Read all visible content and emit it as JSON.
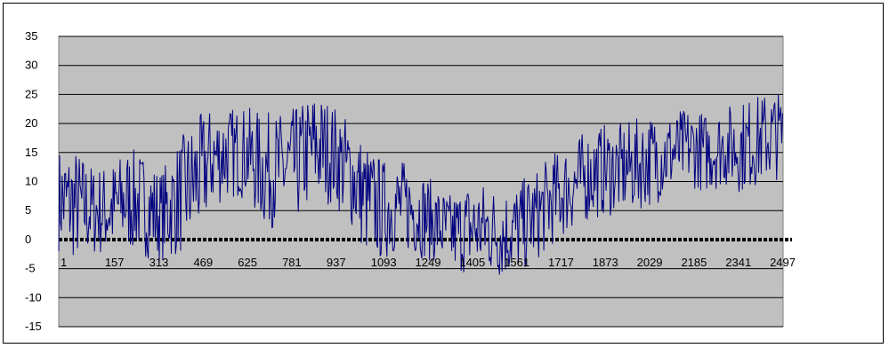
{
  "chart_data": {
    "type": "line",
    "title": "",
    "xlabel": "",
    "ylabel": "",
    "ylim": [
      -15,
      35
    ],
    "y_ticks": [
      "35",
      "30",
      "25",
      "20",
      "15",
      "10",
      "5",
      "0",
      "-5",
      "-10",
      "-15"
    ],
    "x_tick_labels": [
      "1",
      "157",
      "313",
      "469",
      "625",
      "781",
      "937",
      "1093",
      "1249",
      "1405",
      "1561",
      "1717",
      "1873",
      "2029",
      "2185",
      "2341",
      "2497"
    ],
    "xlim": [
      1,
      2550
    ],
    "grid": "horizontal",
    "legend": "none",
    "plot_background": "#c0c0c0",
    "colors": {
      "series": "#000080",
      "zero_line": "#000000",
      "gridline": "#000000"
    },
    "series": [
      {
        "x": [
          1,
          60,
          120,
          180,
          240,
          300,
          360,
          420,
          480,
          540,
          600,
          660,
          720,
          780,
          840,
          900,
          960,
          1020,
          1080,
          1140,
          1200,
          1260,
          1320,
          1380,
          1440,
          1500,
          1560,
          1620,
          1680,
          1740,
          1800,
          1860,
          1920,
          1980,
          2040,
          2100,
          2160,
          2220,
          2280,
          2340,
          2400,
          2460,
          2520,
          2550
        ],
        "y": [
          7,
          6,
          5,
          5,
          7,
          6,
          4,
          7,
          10,
          14,
          15,
          15,
          12,
          12,
          13,
          16,
          15,
          12,
          7,
          5,
          6,
          5,
          3,
          1,
          2,
          2,
          1,
          2,
          4,
          7,
          9,
          11,
          12,
          12,
          13,
          14,
          15,
          16,
          15,
          16,
          16,
          17,
          18,
          18
        ],
        "amplitude": [
          9,
          10,
          8,
          8,
          9,
          9,
          8,
          10,
          11,
          9,
          8,
          8,
          10,
          10,
          10,
          10,
          9,
          9,
          10,
          9,
          8,
          8,
          7,
          7,
          8,
          8,
          8,
          8,
          8,
          8,
          8,
          8,
          8,
          8,
          8,
          8,
          7,
          7,
          7,
          7,
          8,
          8,
          8,
          7
        ]
      }
    ]
  }
}
